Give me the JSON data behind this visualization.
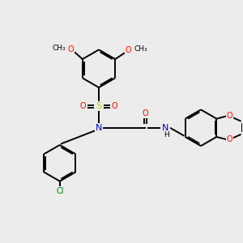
{
  "bg_color": "#ececec",
  "bond_color": "#000000",
  "bond_width": 1.4,
  "dbl_sep": 0.055,
  "atom_colors": {
    "O": "#ff0000",
    "N": "#0000cc",
    "S": "#cccc00",
    "Cl": "#007700",
    "C": "#000000",
    "H": "#000000"
  },
  "fs": 7.0,
  "fs_small": 6.2
}
